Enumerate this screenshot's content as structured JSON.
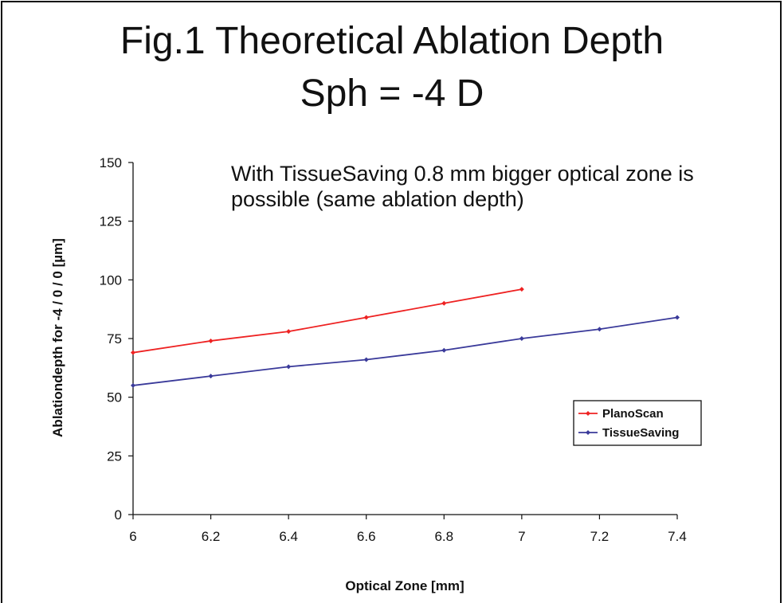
{
  "chart_data": {
    "type": "line",
    "title": "Fig.1 Theoretical Ablation Depth",
    "subtitle": "Sph = -4 D",
    "annotation": "With TissueSaving 0.8 mm bigger optical zone is possible (same ablation depth)",
    "xlabel": "Optical Zone [mm]",
    "ylabel": "Ablationdepth for -4 / 0 / 0  [µm]",
    "xlim": [
      6,
      7.4
    ],
    "ylim": [
      0,
      150
    ],
    "x_ticks": [
      "6",
      "6.2",
      "6.4",
      "6.6",
      "6.8",
      "7",
      "7.2",
      "7.4"
    ],
    "y_ticks": [
      "0",
      "25",
      "50",
      "75",
      "100",
      "125",
      "150"
    ],
    "grid": false,
    "legend_position": "right",
    "series": [
      {
        "name": "PlanoScan",
        "color": "#ee2222",
        "x": [
          6,
          6.2,
          6.4,
          6.6,
          6.8,
          7
        ],
        "values": [
          69,
          74,
          78,
          84,
          90,
          96
        ]
      },
      {
        "name": "TissueSaving",
        "color": "#3a3a9a",
        "x": [
          6,
          6.2,
          6.4,
          6.6,
          6.8,
          7,
          7.2,
          7.4
        ],
        "values": [
          55,
          59,
          63,
          66,
          70,
          75,
          79,
          84
        ]
      }
    ]
  }
}
